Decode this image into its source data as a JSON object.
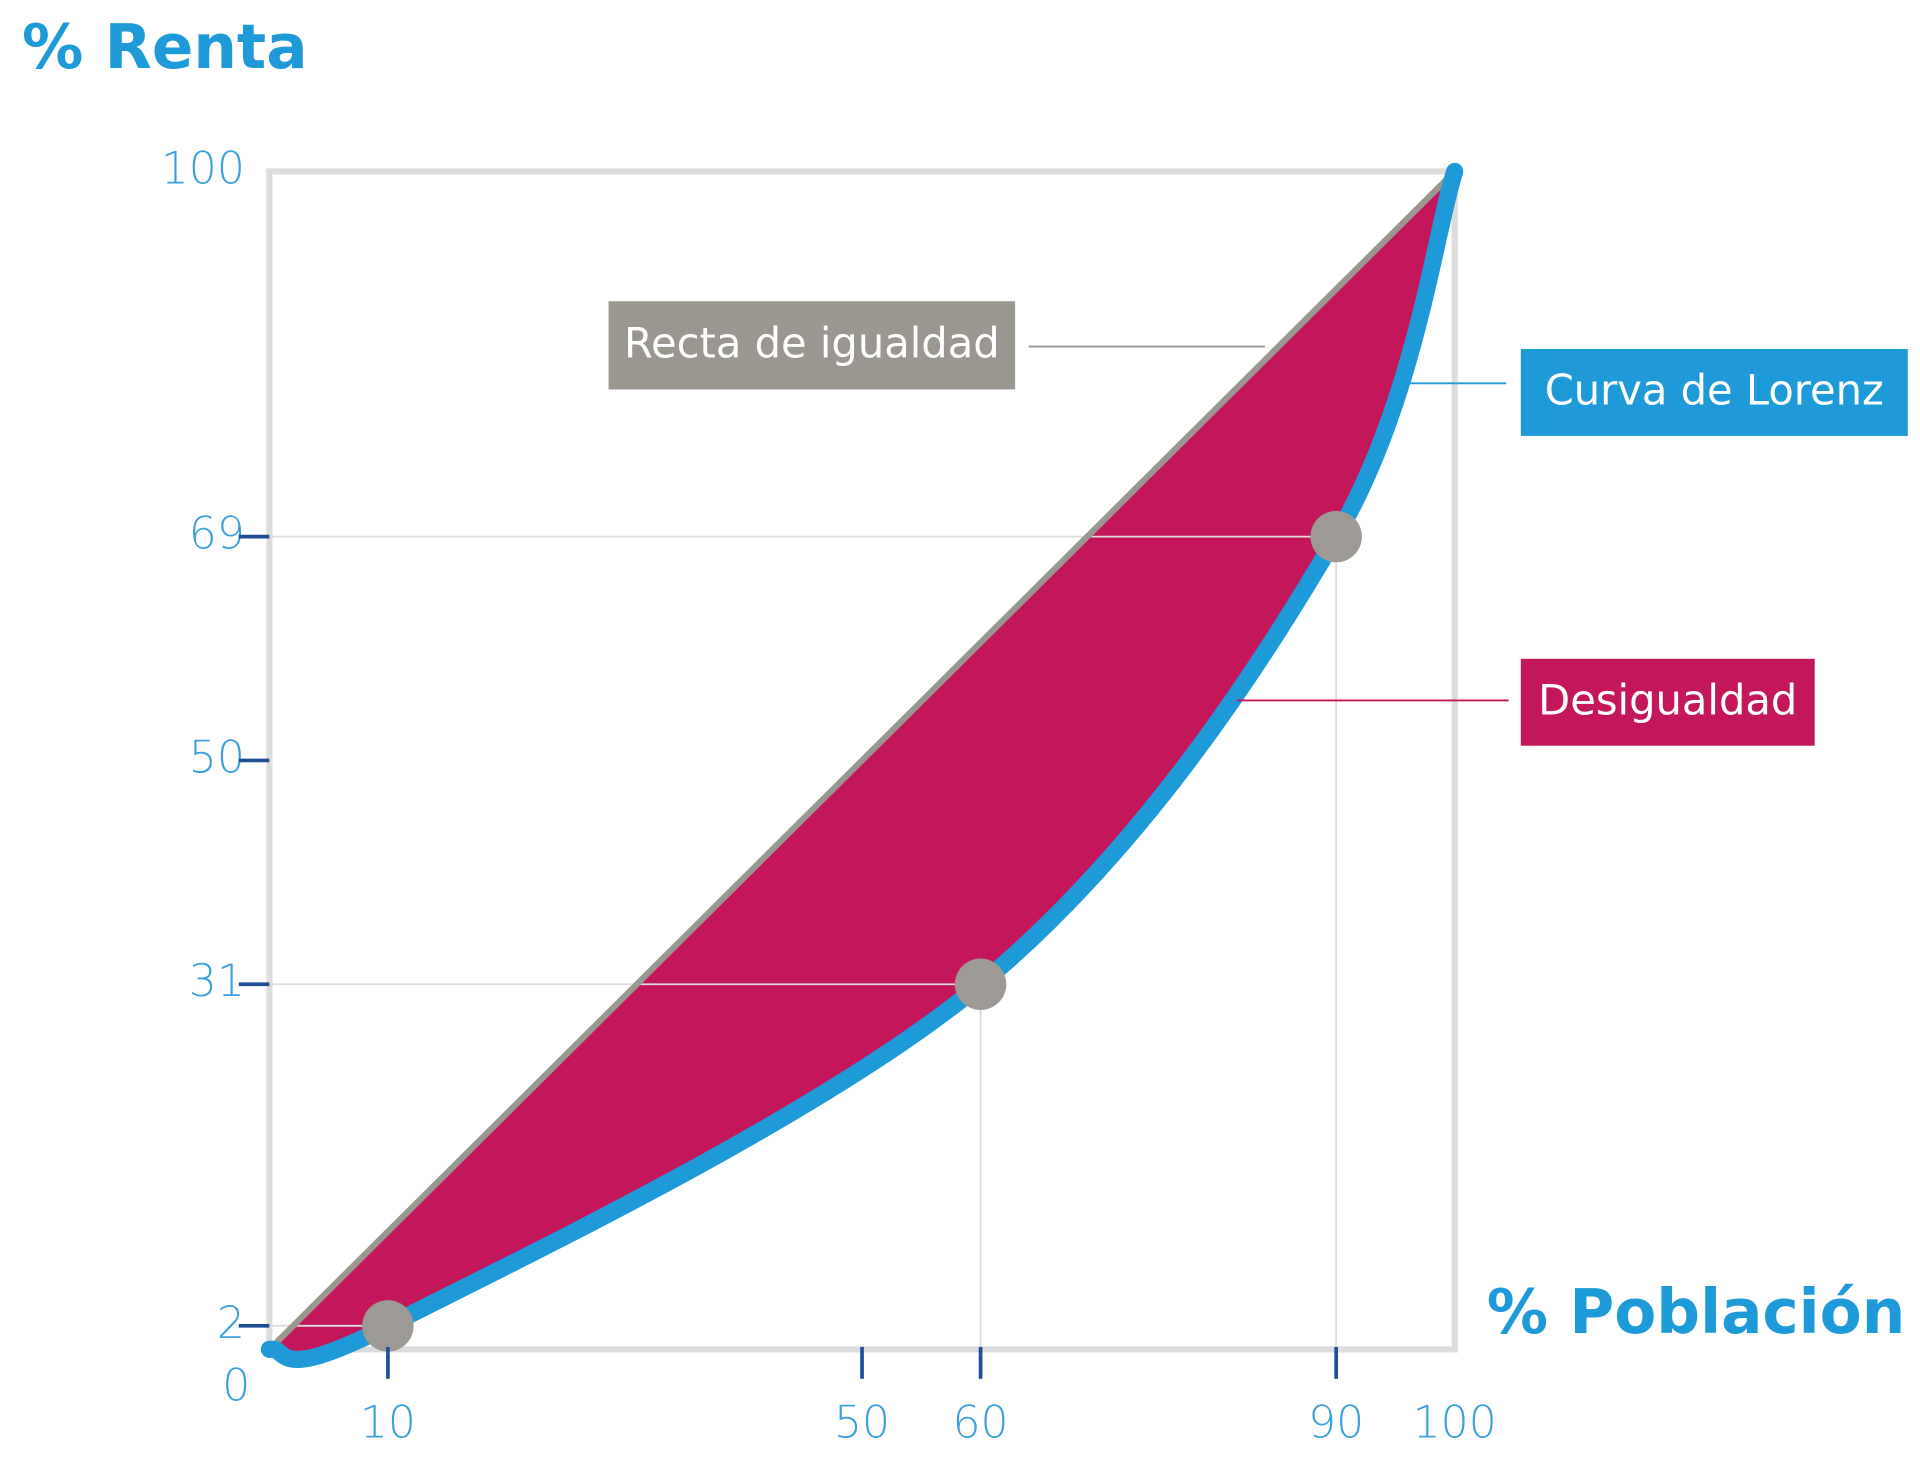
{
  "chart_data": {
    "type": "line",
    "y_title": "% Renta",
    "x_title": "% Población",
    "origin_label": 0,
    "xlim": [
      0,
      100
    ],
    "ylim": [
      0,
      100
    ],
    "xticks": [
      10,
      50,
      60,
      90,
      100
    ],
    "yticks": [
      2,
      31,
      50,
      69,
      100
    ],
    "series": [
      {
        "name": "Recta de igualdad",
        "color": "#9a9690",
        "x": [
          0,
          100
        ],
        "values": [
          0,
          100
        ]
      },
      {
        "name": "Curva de Lorenz",
        "color": "#1f9ad8",
        "x": [
          0,
          10,
          60,
          90,
          100
        ],
        "values": [
          0,
          2,
          31,
          69,
          100
        ]
      }
    ],
    "points": {
      "color": "#9d9a95",
      "x": [
        10,
        60,
        90
      ],
      "values": [
        2,
        31,
        69
      ]
    },
    "area_label": "Desigualdad",
    "area_color": "#c4175b"
  }
}
